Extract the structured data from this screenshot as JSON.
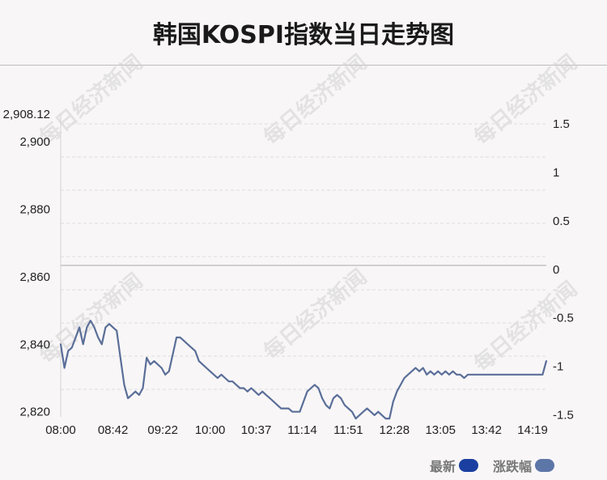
{
  "title": "韩国KOSPI指数当日走势图",
  "watermark": "每日经济新闻",
  "legend": {
    "latest_label": "最新",
    "change_label": "涨跌幅"
  },
  "colors": {
    "line": "#5a6e98",
    "latest_swatch": "#1a3fa0",
    "change_swatch": "#5d76a8",
    "grid": "#dddddd",
    "zero_line": "#c4c4c4",
    "axis_text": "#222222"
  },
  "chart_data": {
    "type": "line",
    "title": "韩国KOSPI指数当日走势图",
    "y_left": {
      "ticks": [
        2820,
        2840,
        2860,
        2880,
        2900
      ],
      "max_label": "2,908.12",
      "ylim": [
        2818.5,
        2908.12
      ]
    },
    "y_right": {
      "ticks": [
        -1.5,
        -1,
        -0.5,
        0,
        0.5,
        1,
        1.5
      ],
      "zero_at": 2863.35,
      "range_pct": [
        -1.52,
        1.6
      ]
    },
    "x_ticks": [
      "08:00",
      "08:42",
      "09:22",
      "10:00",
      "10:37",
      "11:14",
      "11:51",
      "12:28",
      "13:05",
      "13:42",
      "14:19"
    ],
    "grid": true,
    "series": [
      {
        "x": [
          "08:00",
          "08:03",
          "08:06",
          "08:09",
          "08:12",
          "08:15",
          "08:18",
          "08:21",
          "08:24",
          "08:27",
          "08:30",
          "08:33",
          "08:36",
          "08:39",
          "08:42",
          "08:45",
          "08:48",
          "08:51",
          "08:54",
          "08:57",
          "09:00",
          "09:03",
          "09:06",
          "09:09",
          "09:12",
          "09:15",
          "09:18",
          "09:21",
          "09:24",
          "09:27",
          "09:30",
          "09:33",
          "09:36",
          "09:39",
          "09:42",
          "09:45",
          "09:48",
          "09:51",
          "09:54",
          "09:57",
          "10:00",
          "10:03",
          "10:06",
          "10:09",
          "10:12",
          "10:15",
          "10:18",
          "10:21",
          "10:24",
          "10:27",
          "10:30",
          "10:33",
          "10:36",
          "10:39",
          "10:42",
          "10:45",
          "10:48",
          "10:51",
          "10:54",
          "10:57",
          "11:00",
          "11:03",
          "11:06",
          "11:09",
          "11:12",
          "11:15",
          "11:18",
          "11:21",
          "11:24",
          "11:27",
          "11:30",
          "11:33",
          "11:36",
          "11:39",
          "11:42",
          "11:45",
          "11:48",
          "11:51",
          "11:54",
          "11:57",
          "12:00",
          "12:03",
          "12:06",
          "12:09",
          "12:12",
          "12:15",
          "12:18",
          "12:21",
          "12:24",
          "12:27",
          "12:30",
          "12:33",
          "12:36",
          "12:39",
          "12:42",
          "12:45",
          "12:48",
          "12:51",
          "12:54",
          "12:57",
          "13:00",
          "13:03",
          "13:06",
          "13:09",
          "13:12",
          "13:15",
          "13:18",
          "13:21",
          "13:24",
          "13:27",
          "13:30",
          "13:33",
          "13:36",
          "13:39",
          "13:42",
          "13:45",
          "13:48",
          "13:51",
          "13:54",
          "13:57",
          "14:00",
          "14:03",
          "14:06",
          "14:09",
          "14:12",
          "14:15",
          "14:18",
          "14:21",
          "14:24",
          "14:27",
          "14:30"
        ],
        "values": [
          2840,
          2833,
          2838,
          2839,
          2842,
          2845,
          2840,
          2845,
          2847,
          2845,
          2842,
          2840,
          2845,
          2846,
          2845,
          2844,
          2836,
          2828,
          2824,
          2825,
          2826,
          2825,
          2827,
          2836,
          2834,
          2835,
          2834,
          2833,
          2831,
          2832,
          2837,
          2842,
          2842,
          2841,
          2840,
          2839,
          2838,
          2835,
          2834,
          2833,
          2832,
          2831,
          2830,
          2831,
          2830,
          2829,
          2829,
          2828,
          2827,
          2827,
          2826,
          2827,
          2826,
          2825,
          2826,
          2825,
          2824,
          2823,
          2822,
          2821,
          2821,
          2821,
          2820,
          2820,
          2820,
          2823,
          2826,
          2827,
          2828,
          2827,
          2824,
          2822,
          2821,
          2824,
          2825,
          2824,
          2822,
          2821,
          2820,
          2818,
          2819,
          2820,
          2821,
          2820,
          2819,
          2820,
          2819,
          2818,
          2818,
          2823,
          2826,
          2828,
          2830,
          2831,
          2832,
          2833,
          2832,
          2833,
          2831,
          2832,
          2831,
          2832,
          2831,
          2832,
          2831,
          2832,
          2831,
          2831,
          2830,
          2831,
          2831,
          2831,
          2831,
          2831,
          2831,
          2831,
          2831,
          2831,
          2831,
          2831,
          2831,
          2831,
          2831,
          2831,
          2831,
          2831,
          2831,
          2831,
          2831,
          2831,
          2835
        ]
      }
    ]
  }
}
